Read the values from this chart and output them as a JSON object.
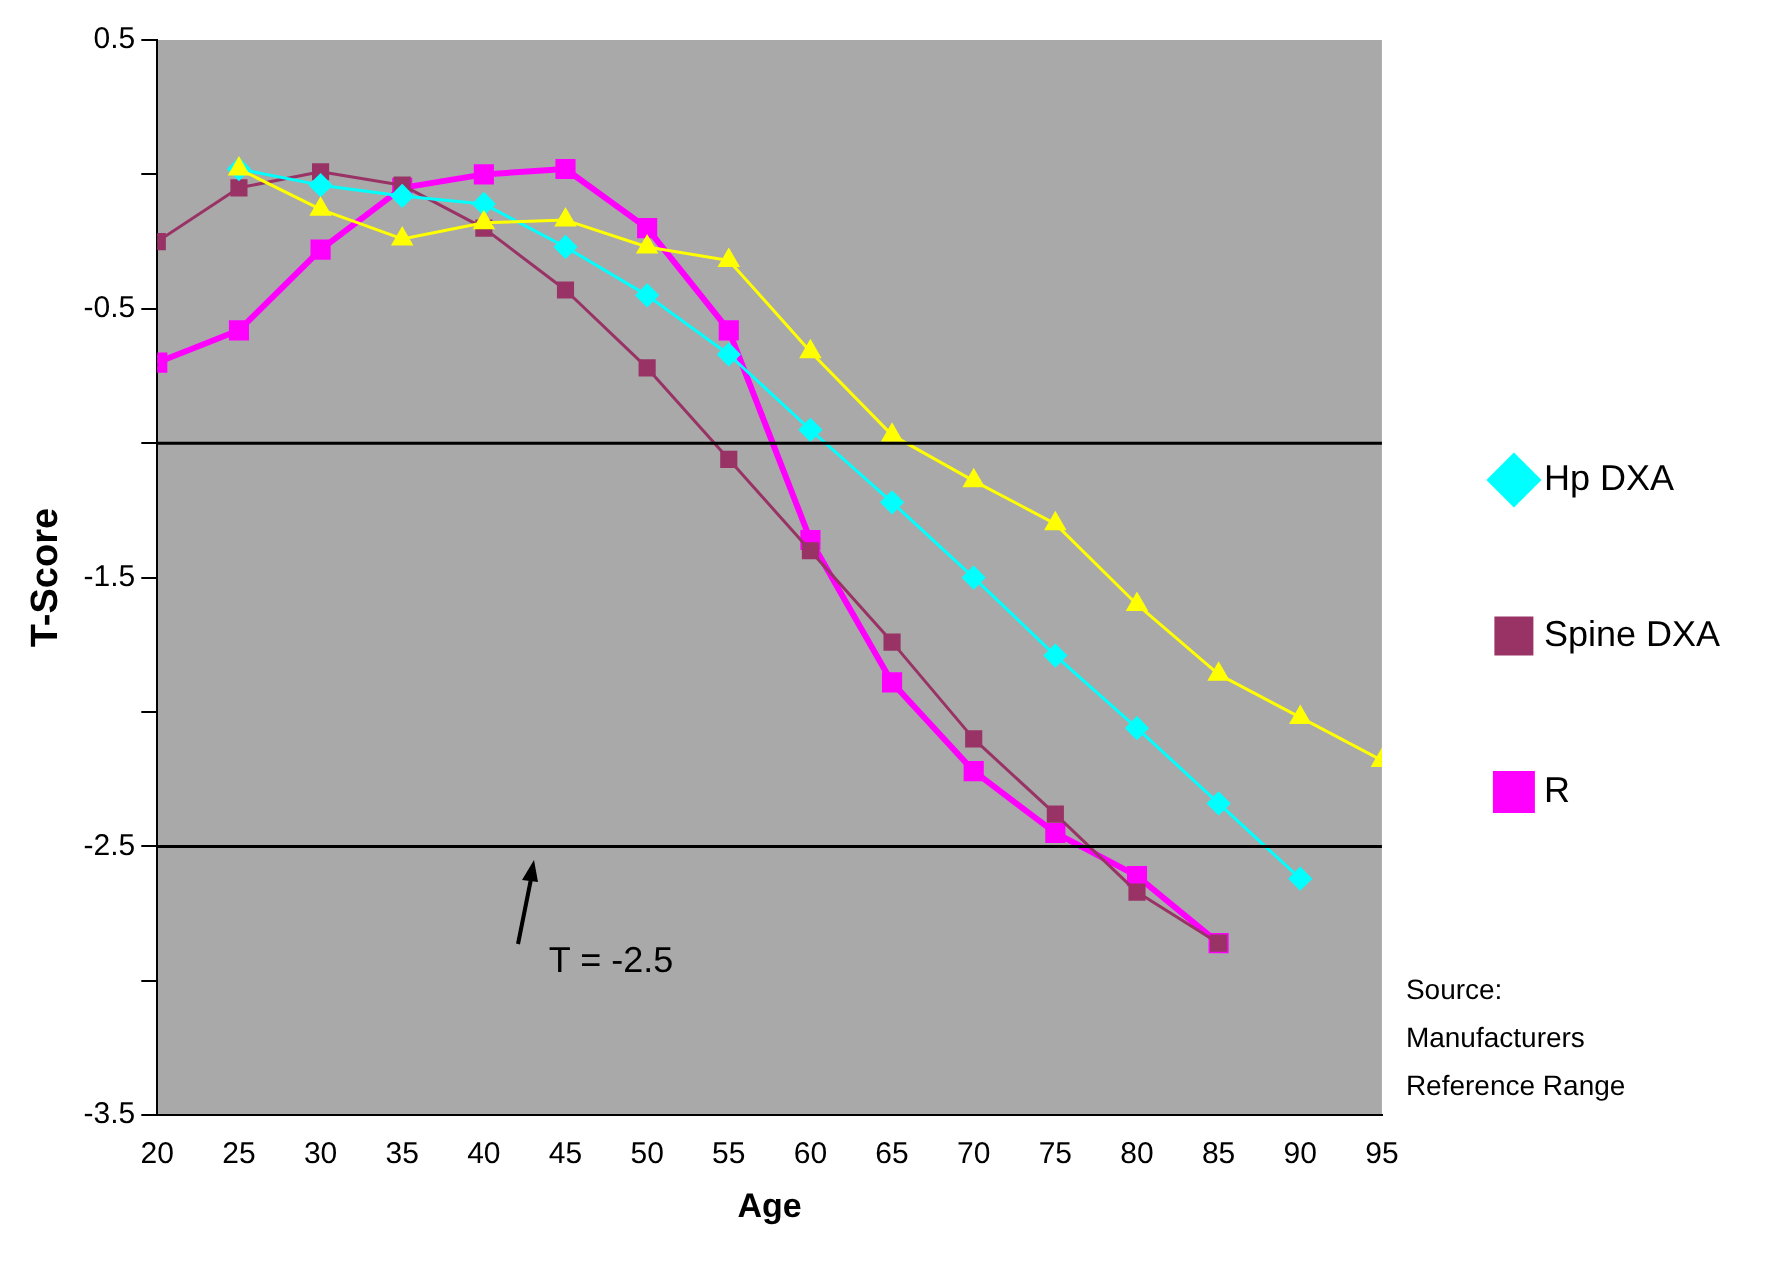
{
  "chart_data": {
    "type": "line",
    "xlabel": "Age",
    "ylabel": "T-Score",
    "x": [
      20,
      25,
      30,
      35,
      40,
      45,
      50,
      55,
      60,
      65,
      70,
      75,
      80,
      85,
      90,
      95
    ],
    "xlim": [
      20,
      95
    ],
    "xticks": [
      20,
      25,
      30,
      35,
      40,
      45,
      50,
      55,
      60,
      65,
      70,
      75,
      80,
      85,
      90,
      95
    ],
    "ylim": [
      -3.5,
      0.5
    ],
    "yticks": [
      0.5,
      {
        "value": 0,
        "label": null
      },
      -0.5,
      {
        "value": -1,
        "label": null
      },
      -1.5,
      {
        "value": -2,
        "label": null
      },
      -2.5,
      {
        "value": -3,
        "label": null
      },
      -3.5
    ],
    "series": [
      {
        "color": "#ffff00",
        "marker": "triangle",
        "values": [
          null,
          0.02,
          -0.13,
          -0.24,
          -0.18,
          -0.17,
          -0.27,
          -0.32,
          -0.66,
          -0.97,
          -1.14,
          -1.3,
          -1.6,
          -1.86,
          -2.02,
          -2.18
        ]
      },
      {
        "name": "Hp DXA",
        "color": "#00ffff",
        "marker": "diamond",
        "values": [
          null,
          0.02,
          -0.04,
          -0.08,
          -0.11,
          -0.27,
          -0.45,
          -0.67,
          -0.95,
          -1.22,
          -1.5,
          -1.79,
          -2.06,
          -2.34,
          -2.62,
          null
        ]
      },
      {
        "name": "Spine DXA",
        "color": "#993366",
        "marker": "square",
        "values": [
          -0.25,
          -0.05,
          0.01,
          -0.04,
          -0.2,
          -0.43,
          -0.72,
          -1.06,
          -1.4,
          -1.74,
          -2.1,
          -2.38,
          -2.67,
          -2.86,
          null,
          null
        ]
      },
      {
        "name": "R",
        "color": "#ff00ff",
        "marker": "square",
        "values": [
          -0.7,
          -0.58,
          -0.28,
          -0.05,
          0,
          0.02,
          -0.2,
          -0.58,
          -1.36,
          -1.89,
          -2.22,
          -2.45,
          -2.61,
          -2.86,
          null,
          null
        ]
      }
    ],
    "ref_lines": [
      {
        "axis": "y",
        "value": -1,
        "color": "#000000"
      },
      {
        "axis": "y",
        "value": -2.5,
        "color": "#000000"
      }
    ],
    "annotations": [
      {
        "text": "T = -2.5",
        "x": 43,
        "y": -2.5
      },
      "Source:\nManufacturers\nReference Range"
    ],
    "legend": "right",
    "grid": false
  }
}
